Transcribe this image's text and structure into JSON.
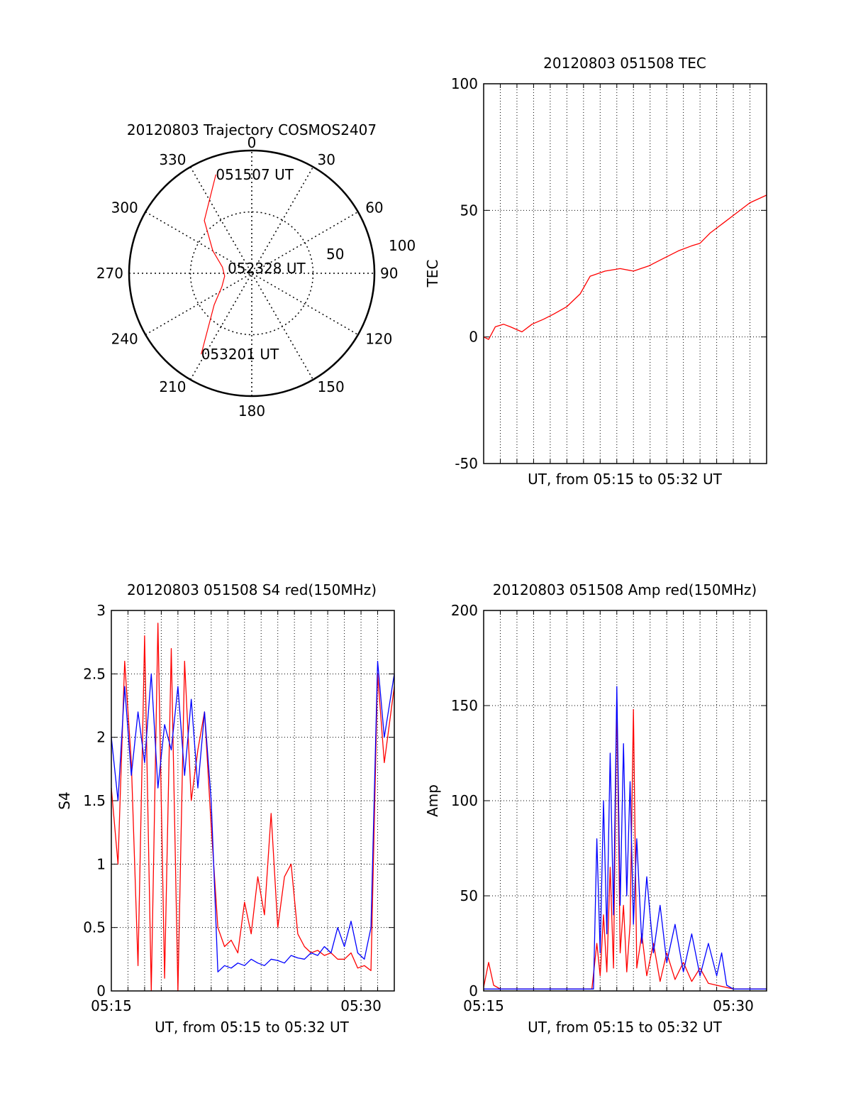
{
  "chart_data": [
    {
      "type": "polar",
      "title": "20120803 Trajectory COSMOS2407",
      "angle_labels": [
        "0",
        "30",
        "60",
        "90",
        "120",
        "150",
        "180",
        "210",
        "240",
        "270",
        "300",
        "330"
      ],
      "radial_labels": [
        "50",
        "100"
      ],
      "grid": true,
      "series": [
        {
          "color": "#ff0000",
          "points": [
            {
              "azimuth": 340,
              "elevation": 13
            },
            {
              "azimuth": 318,
              "elevation": 38
            },
            {
              "azimuth": 300,
              "elevation": 57
            },
            {
              "azimuth": 282,
              "elevation": 68
            },
            {
              "azimuth": 264,
              "elevation": 70
            },
            {
              "azimuth": 246,
              "elevation": 66
            },
            {
              "azimuth": 230,
              "elevation": 54
            },
            {
              "azimuth": 212,
              "elevation": 20
            }
          ]
        }
      ],
      "annotations": [
        {
          "text": "051507 UT",
          "azimuth": 340,
          "elevation": 13
        },
        {
          "text": "052328 UT",
          "azimuth": 282,
          "elevation": 72
        },
        {
          "text": "053201 UT",
          "azimuth": 212,
          "elevation": 20
        }
      ]
    },
    {
      "type": "line",
      "title": "20120803 051508 TEC",
      "xlabel": "UT, from 05:15 to 05:32 UT",
      "ylabel": "TEC",
      "xlim": [
        0,
        17
      ],
      "ylim": [
        -50,
        100
      ],
      "yticks": [
        "-50",
        "0",
        "50",
        "100"
      ],
      "grid": true,
      "series": [
        {
          "color": "#ff0000",
          "x": [
            0,
            0.3,
            0.7,
            1.2,
            1.6,
            2.3,
            2.9,
            3.6,
            4.2,
            5.0,
            5.8,
            6.4,
            7.3,
            8.2,
            9.0,
            9.9,
            10.8,
            11.7,
            12.5,
            13.0,
            13.6,
            14.4,
            15.2,
            16.0,
            17.0
          ],
          "y": [
            0,
            -1,
            4,
            5,
            4,
            2,
            5,
            7,
            9,
            12,
            17,
            24,
            26,
            27,
            26,
            28,
            31,
            34,
            36,
            37,
            41,
            45,
            49,
            53,
            56
          ]
        }
      ]
    },
    {
      "type": "line",
      "title": "20120803 051508 S4 red(150MHz)",
      "xlabel": "UT, from 05:15 to 05:32 UT",
      "ylabel": "S4",
      "xlim": [
        0,
        17
      ],
      "ylim": [
        0,
        3
      ],
      "xticks": [
        "05:15",
        "05:30"
      ],
      "yticks": [
        "0",
        "0.5",
        "1",
        "1.5",
        "2",
        "2.5",
        "3"
      ],
      "grid": true,
      "series": [
        {
          "color": "#ff0000",
          "x": [
            0,
            0.4,
            0.8,
            1.2,
            1.6,
            2.0,
            2.4,
            2.8,
            3.2,
            3.6,
            4.0,
            4.4,
            4.8,
            5.2,
            5.6,
            6.0,
            6.4,
            6.8,
            7.2,
            7.6,
            8.0,
            8.4,
            8.8,
            9.2,
            9.6,
            10.0,
            10.4,
            10.8,
            11.2,
            11.6,
            12.0,
            12.4,
            12.8,
            13.2,
            13.6,
            14.0,
            14.4,
            14.8,
            15.2,
            15.6,
            16.0,
            16.4,
            17.0
          ],
          "y": [
            1.6,
            1.0,
            2.6,
            1.8,
            0.2,
            2.8,
            0.0,
            2.9,
            0.1,
            2.7,
            0.0,
            2.6,
            1.5,
            1.9,
            2.2,
            1.3,
            0.5,
            0.35,
            0.4,
            0.3,
            0.7,
            0.45,
            0.9,
            0.6,
            1.4,
            0.5,
            0.9,
            1.0,
            0.45,
            0.35,
            0.3,
            0.32,
            0.28,
            0.3,
            0.25,
            0.25,
            0.3,
            0.18,
            0.2,
            0.16,
            2.5,
            1.8,
            2.4
          ]
        },
        {
          "color": "#0000ff",
          "x": [
            0,
            0.4,
            0.8,
            1.2,
            1.6,
            2.0,
            2.4,
            2.8,
            3.2,
            3.6,
            4.0,
            4.4,
            4.8,
            5.2,
            5.6,
            6.0,
            6.4,
            6.8,
            7.2,
            7.6,
            8.0,
            8.4,
            8.8,
            9.2,
            9.6,
            10.0,
            10.4,
            10.8,
            11.2,
            11.6,
            12.0,
            12.4,
            12.8,
            13.2,
            13.6,
            14.0,
            14.4,
            14.8,
            15.2,
            15.6,
            16.0,
            16.4,
            17.0
          ],
          "y": [
            2.0,
            1.5,
            2.4,
            1.7,
            2.2,
            1.8,
            2.5,
            1.6,
            2.1,
            1.9,
            2.4,
            1.7,
            2.3,
            1.6,
            2.2,
            1.5,
            0.15,
            0.2,
            0.18,
            0.22,
            0.2,
            0.25,
            0.22,
            0.2,
            0.25,
            0.24,
            0.22,
            0.28,
            0.26,
            0.25,
            0.3,
            0.28,
            0.35,
            0.3,
            0.5,
            0.35,
            0.55,
            0.3,
            0.25,
            0.5,
            2.6,
            2.0,
            2.5
          ]
        }
      ]
    },
    {
      "type": "line",
      "title": "20120803 051508 Amp red(150MHz)",
      "xlabel": "UT, from 05:15 to 05:32 UT",
      "ylabel": "Amp",
      "xlim": [
        0,
        17
      ],
      "ylim": [
        0,
        200
      ],
      "xticks": [
        "05:15",
        "05:30"
      ],
      "yticks": [
        "0",
        "50",
        "100",
        "150",
        "200"
      ],
      "grid": true,
      "series": [
        {
          "color": "#ff0000",
          "x": [
            0,
            0.3,
            0.6,
            1.0,
            1.5,
            3.0,
            5.0,
            6.5,
            6.8,
            7.0,
            7.2,
            7.4,
            7.6,
            7.8,
            8.0,
            8.2,
            8.4,
            8.6,
            8.8,
            9.0,
            9.2,
            9.5,
            9.8,
            10.2,
            10.6,
            11.0,
            11.5,
            12.0,
            12.5,
            13.0,
            13.5,
            14.0,
            15.0,
            17.0
          ],
          "y": [
            2,
            15,
            3,
            1,
            1,
            1,
            1,
            1,
            25,
            8,
            40,
            10,
            65,
            12,
            155,
            20,
            45,
            10,
            35,
            148,
            12,
            30,
            8,
            25,
            5,
            20,
            6,
            15,
            5,
            12,
            4,
            3,
            1,
            1
          ]
        },
        {
          "color": "#0000ff",
          "x": [
            0,
            1.0,
            3.0,
            5.0,
            6.6,
            6.8,
            7.0,
            7.2,
            7.4,
            7.6,
            7.8,
            8.0,
            8.2,
            8.4,
            8.6,
            8.8,
            9.0,
            9.2,
            9.5,
            9.8,
            10.2,
            10.6,
            11.0,
            11.5,
            12.0,
            12.5,
            13.0,
            13.5,
            14.0,
            14.3,
            14.6,
            15.0,
            17.0
          ],
          "y": [
            1,
            1,
            1,
            1,
            1,
            80,
            20,
            100,
            30,
            125,
            40,
            160,
            45,
            130,
            50,
            110,
            35,
            80,
            25,
            60,
            20,
            45,
            15,
            35,
            10,
            30,
            8,
            25,
            8,
            20,
            3,
            1,
            1
          ]
        }
      ]
    }
  ]
}
